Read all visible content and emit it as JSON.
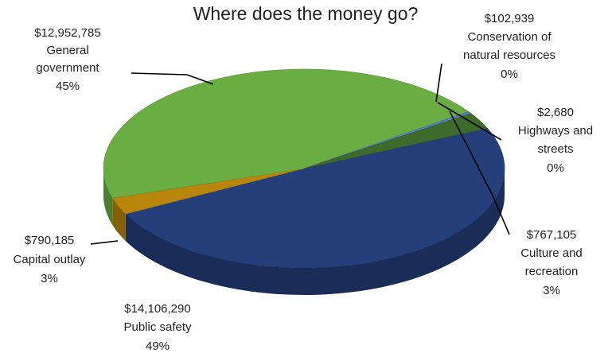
{
  "chart_data": {
    "type": "pie",
    "title": "Where does the money go?",
    "slices": [
      {
        "name": "Public safety",
        "value": 14106290,
        "value_label": "$14,106,290",
        "percent_label": "49%",
        "color": "#243f7a"
      },
      {
        "name": "Capital outlay",
        "value": 790185,
        "value_label": "$790,185",
        "percent_label": "3%",
        "color": "#b8860b"
      },
      {
        "name": "General government",
        "value": 12952785,
        "value_label": "$12,952,785",
        "percent_label": "45%",
        "color": "#6aad42"
      },
      {
        "name": "Conservation of natural resources",
        "value": 102939,
        "value_label": "$102,939",
        "percent_label": "0%",
        "color": "#4f81bd"
      },
      {
        "name": "Highways and streets",
        "value": 2680,
        "value_label": "$2,680",
        "percent_label": "0%",
        "color": "#c0504d"
      },
      {
        "name": "Culture and recreation",
        "value": 767105,
        "value_label": "$767,105",
        "percent_label": "3%",
        "color": "#3d6b2c"
      }
    ]
  },
  "labels": {
    "general": {
      "value": "$12,952,785",
      "name_line1": "General",
      "name_line2": "government",
      "pct": "45%"
    },
    "conservation": {
      "value": "$102,939",
      "name_line1": "Conservation of",
      "name_line2": "natural resources",
      "pct": "0%"
    },
    "highways": {
      "value": "$2,680",
      "name_line1": "Highways and",
      "name_line2": "streets",
      "pct": "0%"
    },
    "culture": {
      "value": "$767,105",
      "name_line1": "Culture and",
      "name_line2": "recreation",
      "pct": "3%"
    },
    "capital": {
      "value": "$790,185",
      "name_line1": "Capital outlay",
      "pct": "3%"
    },
    "public": {
      "value": "$14,106,290",
      "name_line1": "Public safety",
      "pct": "49%"
    }
  }
}
